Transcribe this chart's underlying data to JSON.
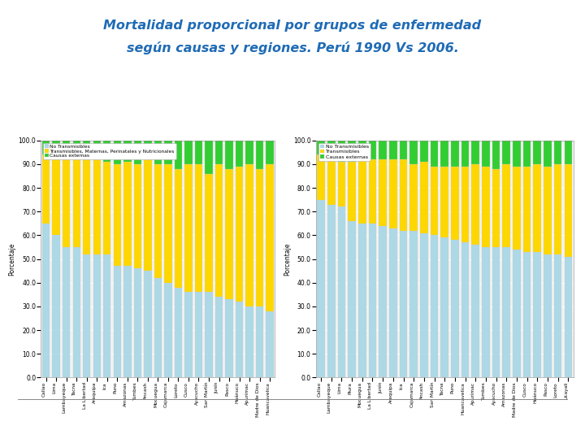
{
  "title_line1": "Mortalidad proporcional por grupos de enfermedad",
  "title_line2": "según causas y regiones. Perú 1990 Vs 2006.",
  "title_color": "#1F6BB5",
  "background_color": "#FFFFFF",
  "colors": {
    "no_transmisibles": "#ADD8E6",
    "transmisibles": "#FFD700",
    "causas_externas": "#32CD32"
  },
  "chart1": {
    "ylabel": "Porcentaje",
    "legend": [
      "No Transmisibles",
      "Transmisibles, Maternas, Perinatales y Nutricionales",
      "Causas externas"
    ],
    "regions": [
      "Callao",
      "Lima",
      "Lambayeque",
      "Tacna",
      "La Libertad",
      "Arequipa",
      "Ica",
      "Puno",
      "Amazonas",
      "Tumbes",
      "Ancash",
      "Moquegua",
      "Cajamarca",
      "Loreto",
      "Cusco",
      "Ayacucho",
      "San Martín",
      "Junín",
      "Pasco",
      "Huánuco",
      "Apurímac",
      "Madre de Dios",
      "Huancavelica"
    ],
    "no_transmisibles": [
      65,
      60,
      55,
      55,
      52,
      52,
      52,
      47,
      47,
      46,
      45,
      42,
      40,
      38,
      36,
      36,
      36,
      34,
      33,
      32,
      30,
      30,
      28
    ],
    "transmisibles": [
      29,
      34,
      37,
      38,
      40,
      40,
      39,
      43,
      44,
      44,
      47,
      48,
      50,
      50,
      54,
      54,
      50,
      56,
      55,
      57,
      60,
      58,
      62
    ],
    "causas_externas": [
      6,
      6,
      8,
      7,
      8,
      8,
      9,
      10,
      9,
      10,
      8,
      10,
      10,
      12,
      10,
      10,
      14,
      10,
      12,
      11,
      10,
      12,
      10
    ]
  },
  "chart2": {
    "ylabel": "Porcentaje",
    "legend": [
      "No Transmisibles",
      "Transmisibles",
      "Causas externas"
    ],
    "regions": [
      "Callao",
      "Lambayeque",
      "Lima",
      "Piura",
      "Moquegua",
      "La Libertad",
      "Junín",
      "Arequipa",
      "Ica",
      "Cajamarca",
      "Ancash",
      "San Martín",
      "Tacna",
      "Puno",
      "Huancavelica",
      "Apurímac",
      "Tumbes",
      "Ayacucho",
      "Amazonas",
      "Madre de Dios",
      "Cusco",
      "Huánuco",
      "Pasco",
      "Loreto",
      "Ucayali"
    ],
    "no_transmisibles": [
      75,
      73,
      72,
      66,
      65,
      65,
      64,
      63,
      62,
      62,
      61,
      60,
      59,
      58,
      57,
      56,
      55,
      55,
      55,
      54,
      53,
      53,
      52,
      52,
      51
    ],
    "transmisibles": [
      19,
      21,
      19,
      25,
      27,
      27,
      28,
      29,
      30,
      28,
      30,
      29,
      30,
      31,
      32,
      34,
      34,
      33,
      35,
      35,
      36,
      37,
      37,
      38,
      39
    ],
    "causas_externas": [
      6,
      6,
      9,
      9,
      8,
      8,
      8,
      8,
      8,
      10,
      9,
      11,
      11,
      11,
      11,
      10,
      11,
      12,
      10,
      11,
      11,
      10,
      11,
      10,
      10
    ]
  }
}
